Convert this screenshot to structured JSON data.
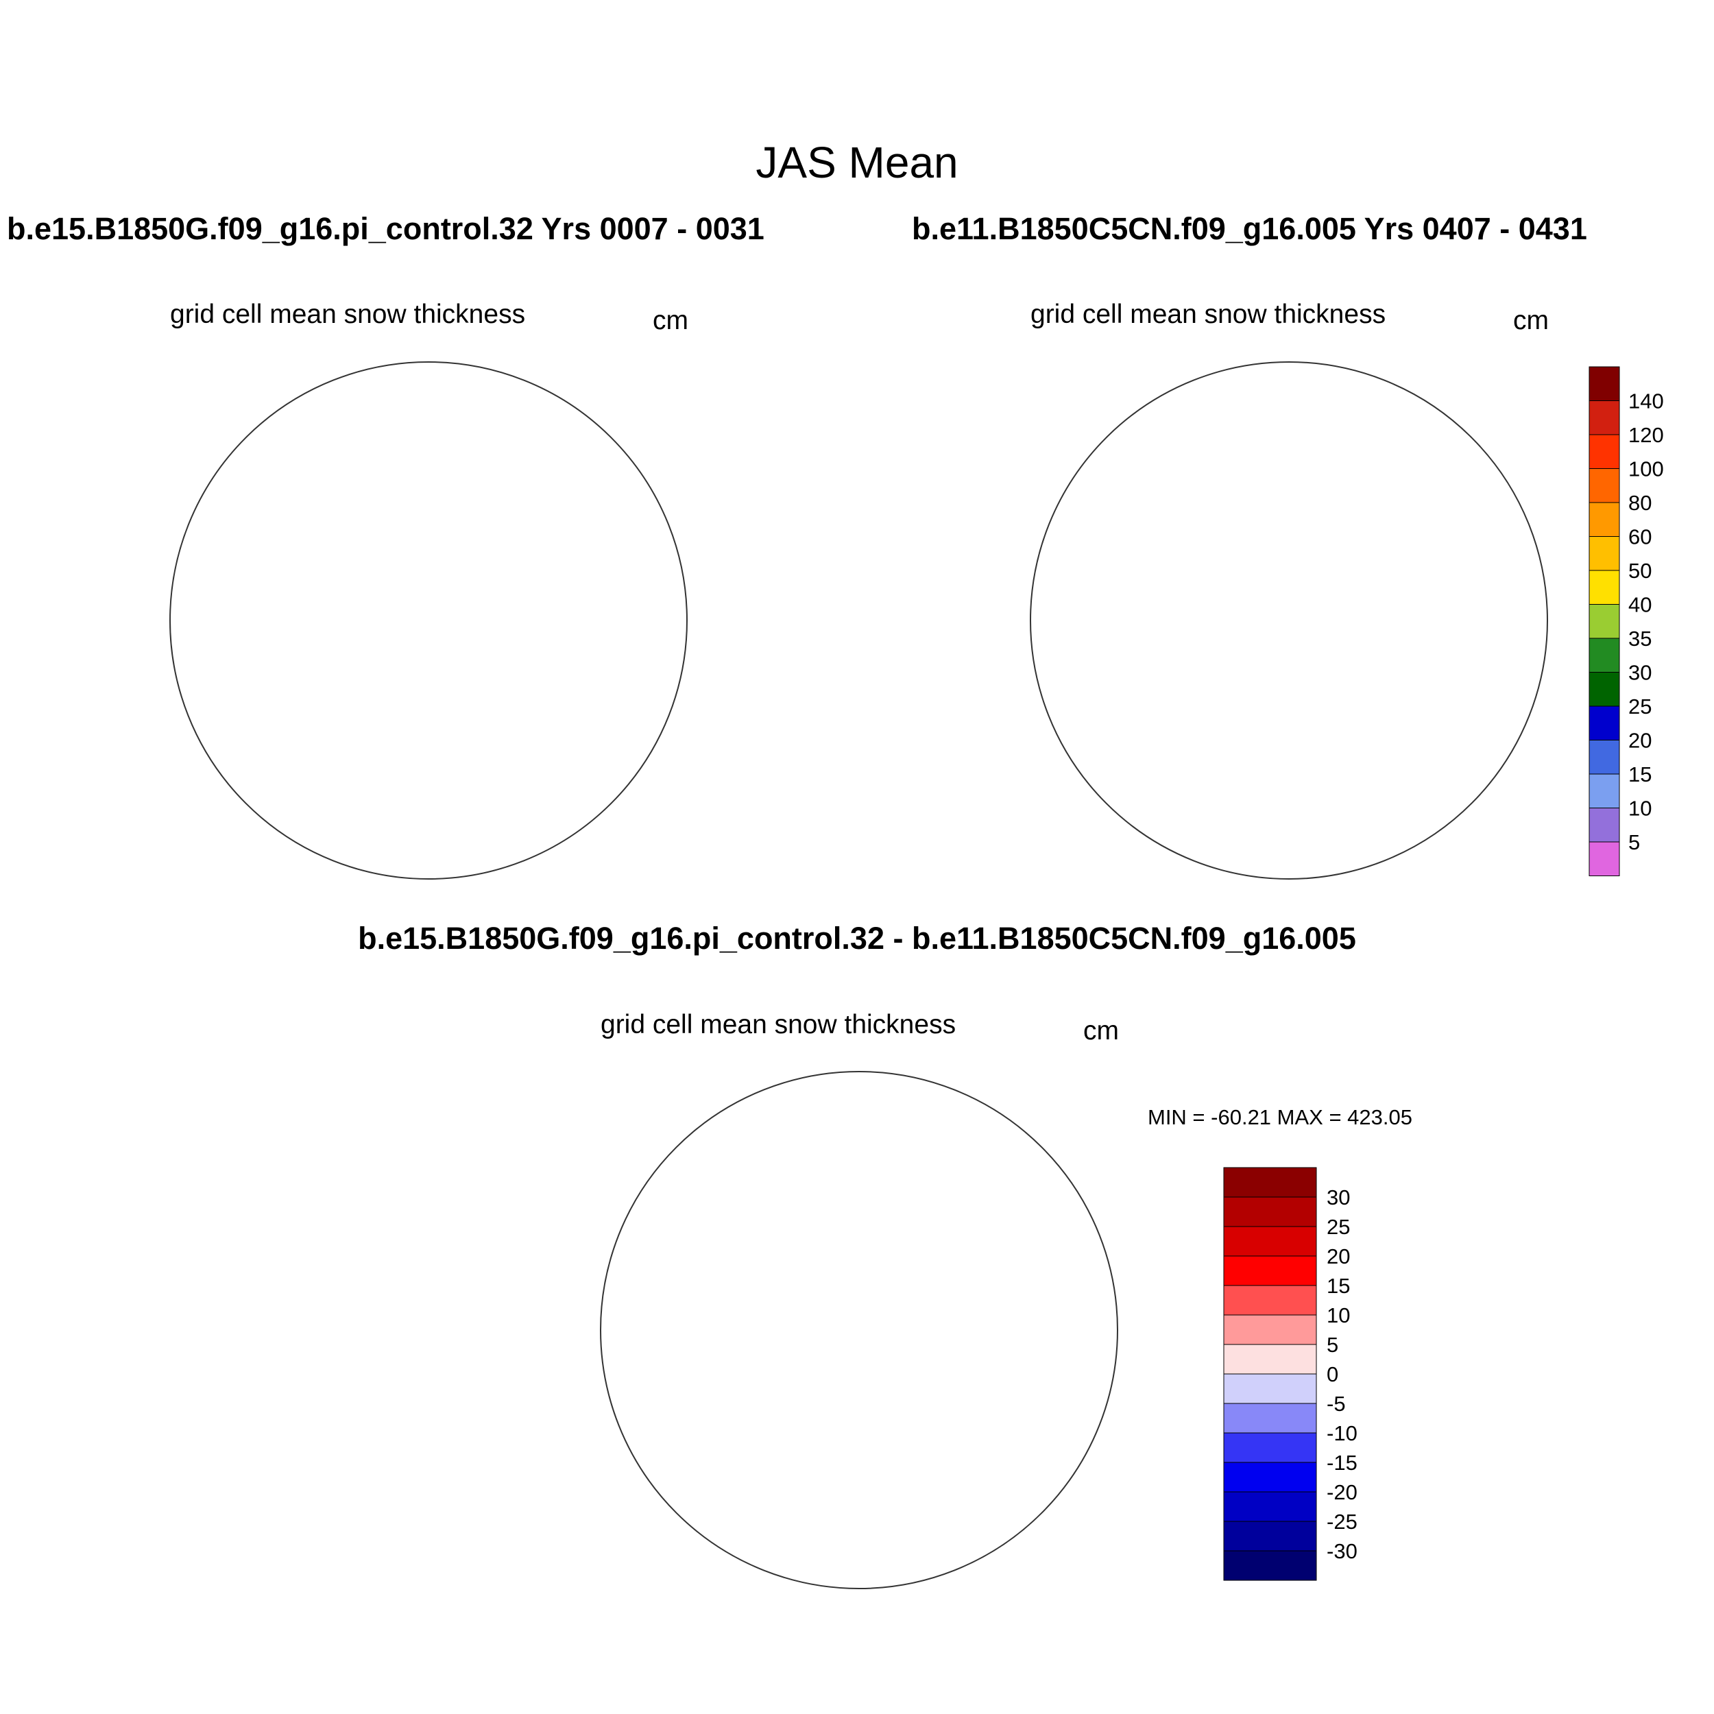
{
  "main_title": "JAS Mean",
  "panels": [
    {
      "case": "b.e15.B1850G.f09_g16.pi_control.32  Yrs 0007 - 0031",
      "field_label": "grid cell mean snow thickness",
      "units": "cm"
    },
    {
      "case": "b.e11.B1850C5CN.f09_g16.005  Yrs 0407 - 0431",
      "field_label": "grid cell mean snow thickness",
      "units": "cm"
    },
    {
      "case": "b.e15.B1850G.f09_g16.pi_control.32 - b.e11.B1850C5CN.f09_g16.005",
      "field_label": "grid cell mean snow thickness",
      "units": "cm",
      "minmax": "MIN = -60.21 MAX = 423.05"
    }
  ],
  "colorbar_top": {
    "labels": [
      "140",
      "120",
      "100",
      "80",
      "60",
      "50",
      "40",
      "35",
      "30",
      "25",
      "20",
      "15",
      "10",
      "5"
    ],
    "colors": [
      "#800000",
      "#d22010",
      "#ff3300",
      "#ff6600",
      "#ff9900",
      "#ffbf00",
      "#ffe000",
      "#9acd32",
      "#228b22",
      "#006400",
      "#0000cd",
      "#4169e1",
      "#7b9ff0",
      "#9370db",
      "#e066e0"
    ]
  },
  "colorbar_diff": {
    "labels": [
      "30",
      "25",
      "20",
      "15",
      "10",
      "5",
      "0",
      "-5",
      "-10",
      "-15",
      "-20",
      "-25",
      "-30"
    ],
    "colors": [
      "#8b0000",
      "#b30000",
      "#d80000",
      "#ff0000",
      "#ff5050",
      "#ff9a9a",
      "#fde0e0",
      "#d0d0fb",
      "#8888f8",
      "#3535f5",
      "#0000f0",
      "#0000c4",
      "#00009c",
      "#000070"
    ]
  },
  "palette": {
    "land": "#c0c0c0",
    "coast": "#333333",
    "grid": "#555555"
  }
}
